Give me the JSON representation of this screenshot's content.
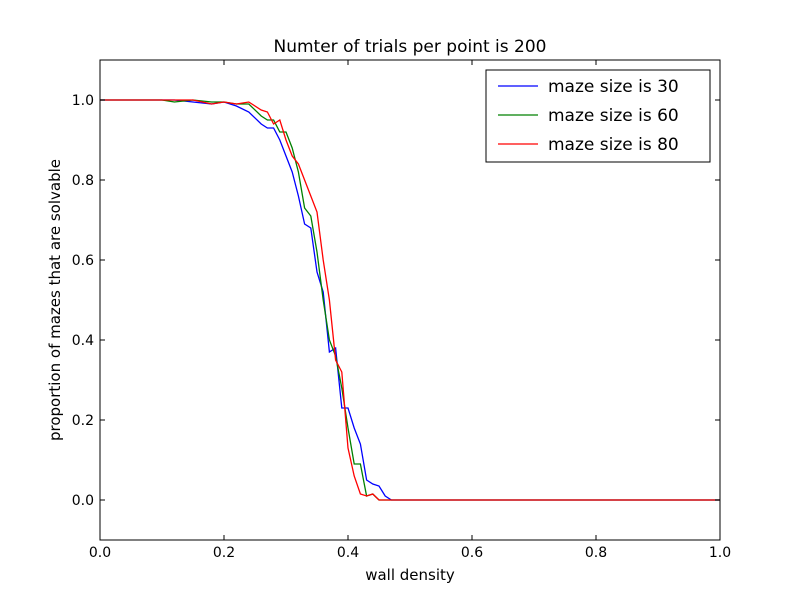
{
  "chart_data": {
    "type": "line",
    "title": "Numter of trials per point is 200",
    "xlabel": "wall density",
    "ylabel": "proportion of mazes that are solvable",
    "xlim": [
      0.0,
      1.0
    ],
    "ylim": [
      -0.1,
      1.1
    ],
    "xticks": [
      0.0,
      0.2,
      0.4,
      0.6,
      0.8,
      1.0
    ],
    "xtick_labels": [
      "0.0",
      "0.2",
      "0.4",
      "0.6",
      "0.8",
      "1.0"
    ],
    "yticks": [
      0.0,
      0.2,
      0.4,
      0.6,
      0.8,
      1.0
    ],
    "ytick_labels": [
      "0.0",
      "0.2",
      "0.4",
      "0.6",
      "0.8",
      "1.0"
    ],
    "grid": false,
    "legend_position": "top-right",
    "x": [
      0.0,
      0.1,
      0.12,
      0.15,
      0.18,
      0.2,
      0.22,
      0.24,
      0.26,
      0.27,
      0.28,
      0.29,
      0.3,
      0.31,
      0.32,
      0.33,
      0.34,
      0.35,
      0.36,
      0.37,
      0.38,
      0.39,
      0.4,
      0.41,
      0.42,
      0.43,
      0.44,
      0.45,
      0.46,
      0.47,
      0.5,
      1.0
    ],
    "series": [
      {
        "name": "maze size is 30",
        "color": "#0000ff",
        "values": [
          1.0,
          1.0,
          1.0,
          0.995,
          0.99,
          0.995,
          0.985,
          0.97,
          0.94,
          0.93,
          0.93,
          0.9,
          0.86,
          0.82,
          0.76,
          0.69,
          0.68,
          0.57,
          0.52,
          0.37,
          0.38,
          0.23,
          0.23,
          0.18,
          0.14,
          0.05,
          0.04,
          0.035,
          0.01,
          0.0,
          0.0,
          0.0
        ]
      },
      {
        "name": "maze size is 60",
        "color": "#008000",
        "values": [
          1.0,
          1.0,
          0.995,
          1.0,
          0.995,
          0.995,
          0.99,
          0.99,
          0.96,
          0.95,
          0.95,
          0.92,
          0.92,
          0.88,
          0.82,
          0.73,
          0.71,
          0.62,
          0.5,
          0.4,
          0.36,
          0.28,
          0.18,
          0.09,
          0.09,
          0.01,
          0.015,
          0.0,
          0.0,
          0.0,
          0.0,
          0.0
        ]
      },
      {
        "name": "maze size is 80",
        "color": "#ff0000",
        "values": [
          1.0,
          1.0,
          1.0,
          1.0,
          0.99,
          0.995,
          0.99,
          0.995,
          0.975,
          0.97,
          0.94,
          0.95,
          0.9,
          0.86,
          0.84,
          0.8,
          0.76,
          0.72,
          0.6,
          0.5,
          0.35,
          0.32,
          0.13,
          0.06,
          0.015,
          0.01,
          0.015,
          0.0,
          0.0,
          0.0,
          0.0,
          0.0
        ]
      }
    ]
  }
}
